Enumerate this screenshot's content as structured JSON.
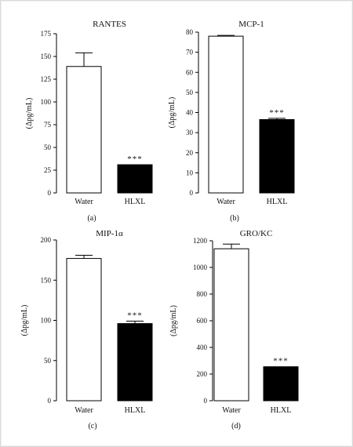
{
  "chart_data": [
    {
      "type": "bar",
      "title": "RANTES",
      "ylabel": "(Δpg/mL)",
      "panel": "(a)",
      "categories": [
        "Water",
        "HLXL"
      ],
      "values": [
        139,
        31
      ],
      "errors": [
        15,
        0
      ],
      "significance": [
        "",
        "***"
      ],
      "fills": [
        "#ffffff",
        "#000000"
      ],
      "ylim": [
        0,
        175
      ],
      "yticks": [
        0,
        25,
        50,
        75,
        100,
        125,
        150,
        175
      ]
    },
    {
      "type": "bar",
      "title": "MCP-1",
      "ylabel": "(Δpg/mL)",
      "panel": "(b)",
      "categories": [
        "Water",
        "HLXL"
      ],
      "values": [
        78,
        36.5
      ],
      "errors": [
        0.4,
        0.6
      ],
      "significance": [
        "",
        "***"
      ],
      "fills": [
        "#ffffff",
        "#000000"
      ],
      "ylim": [
        0,
        80
      ],
      "yticks": [
        0,
        10,
        20,
        30,
        40,
        50,
        60,
        70,
        80
      ]
    },
    {
      "type": "bar",
      "title": "MIP-1α",
      "ylabel": "(Δpg/mL)",
      "panel": "(c)",
      "categories": [
        "Water",
        "HLXL"
      ],
      "values": [
        177,
        96
      ],
      "errors": [
        4,
        3
      ],
      "significance": [
        "",
        "***"
      ],
      "fills": [
        "#ffffff",
        "#000000"
      ],
      "ylim": [
        0,
        200
      ],
      "yticks": [
        0,
        50,
        100,
        150,
        200
      ]
    },
    {
      "type": "bar",
      "title": "GRO/KC",
      "ylabel": "(Δpg/mL)",
      "panel": "(d)",
      "categories": [
        "Water",
        "HLXL"
      ],
      "values": [
        1140,
        255
      ],
      "errors": [
        35,
        0
      ],
      "significance": [
        "",
        "***"
      ],
      "fills": [
        "#ffffff",
        "#000000"
      ],
      "ylim": [
        0,
        1200
      ],
      "yticks": [
        0,
        200,
        400,
        600,
        800,
        1000,
        1200
      ]
    }
  ]
}
